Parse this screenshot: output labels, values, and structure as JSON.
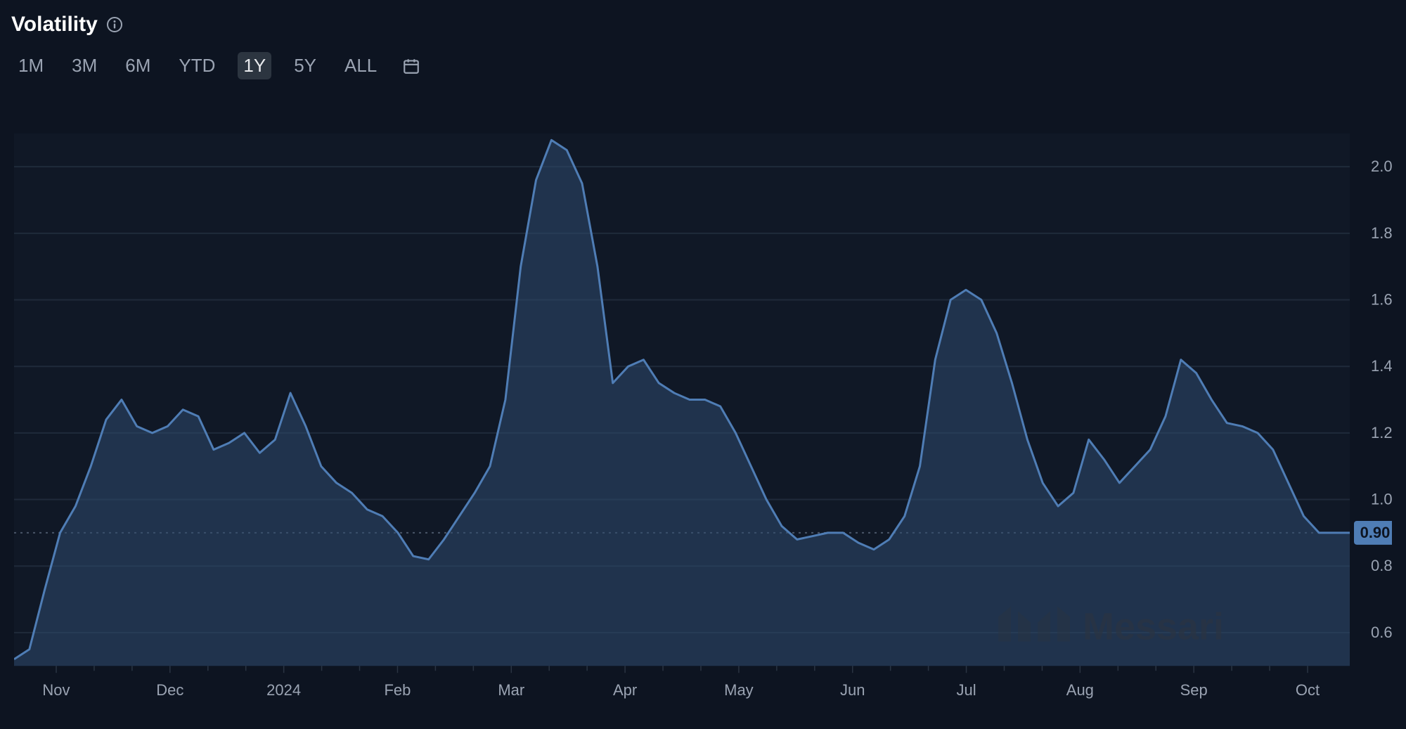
{
  "title": "Volatility",
  "ranges": [
    {
      "label": "1M",
      "active": false
    },
    {
      "label": "3M",
      "active": false
    },
    {
      "label": "6M",
      "active": false
    },
    {
      "label": "YTD",
      "active": false
    },
    {
      "label": "1Y",
      "active": true
    },
    {
      "label": "5Y",
      "active": false
    },
    {
      "label": "ALL",
      "active": false
    }
  ],
  "chart": {
    "type": "area",
    "background_color": "#0d1421",
    "plot_background": "#101826",
    "grid_color": "#1f2a3a",
    "dotted_color": "#4a5568",
    "line_color": "#4f7db5",
    "area_color": "#2d4a6e",
    "area_opacity": 0.55,
    "label_color": "#9aa3b2",
    "label_fontsize": 22,
    "line_width": 3,
    "ylim": [
      0.5,
      2.1
    ],
    "yticks": [
      0.6,
      0.8,
      1.0,
      1.2,
      1.4,
      1.6,
      1.8,
      2.0
    ],
    "ytick_labels": [
      "0.60",
      "0.80",
      "1.00",
      "1.20",
      "1.40",
      "1.60",
      "1.80",
      "2.00"
    ],
    "reference_value": 0.9,
    "reference_label": "0.90",
    "badge_bg": "#4f7db5",
    "badge_text_color": "#0d1421",
    "xticks": [
      "Nov",
      "Dec",
      "2024",
      "Feb",
      "Mar",
      "Apr",
      "May",
      "Jun",
      "Jul",
      "Aug",
      "Sep",
      "Oct"
    ],
    "data": [
      0.52,
      0.55,
      0.73,
      0.9,
      0.98,
      1.1,
      1.24,
      1.3,
      1.22,
      1.2,
      1.22,
      1.27,
      1.25,
      1.15,
      1.17,
      1.2,
      1.14,
      1.18,
      1.32,
      1.22,
      1.1,
      1.05,
      1.02,
      0.97,
      0.95,
      0.9,
      0.83,
      0.82,
      0.88,
      0.95,
      1.02,
      1.1,
      1.3,
      1.7,
      1.96,
      2.08,
      2.05,
      1.95,
      1.7,
      1.35,
      1.4,
      1.42,
      1.35,
      1.32,
      1.3,
      1.3,
      1.28,
      1.2,
      1.1,
      1.0,
      0.92,
      0.88,
      0.89,
      0.9,
      0.9,
      0.87,
      0.85,
      0.88,
      0.95,
      1.1,
      1.42,
      1.6,
      1.63,
      1.6,
      1.5,
      1.35,
      1.18,
      1.05,
      0.98,
      1.02,
      1.18,
      1.12,
      1.05,
      1.1,
      1.15,
      1.25,
      1.42,
      1.38,
      1.3,
      1.23,
      1.22,
      1.2,
      1.15,
      1.05,
      0.95,
      0.9,
      0.9,
      0.9
    ],
    "watermark_text": "Messari"
  }
}
